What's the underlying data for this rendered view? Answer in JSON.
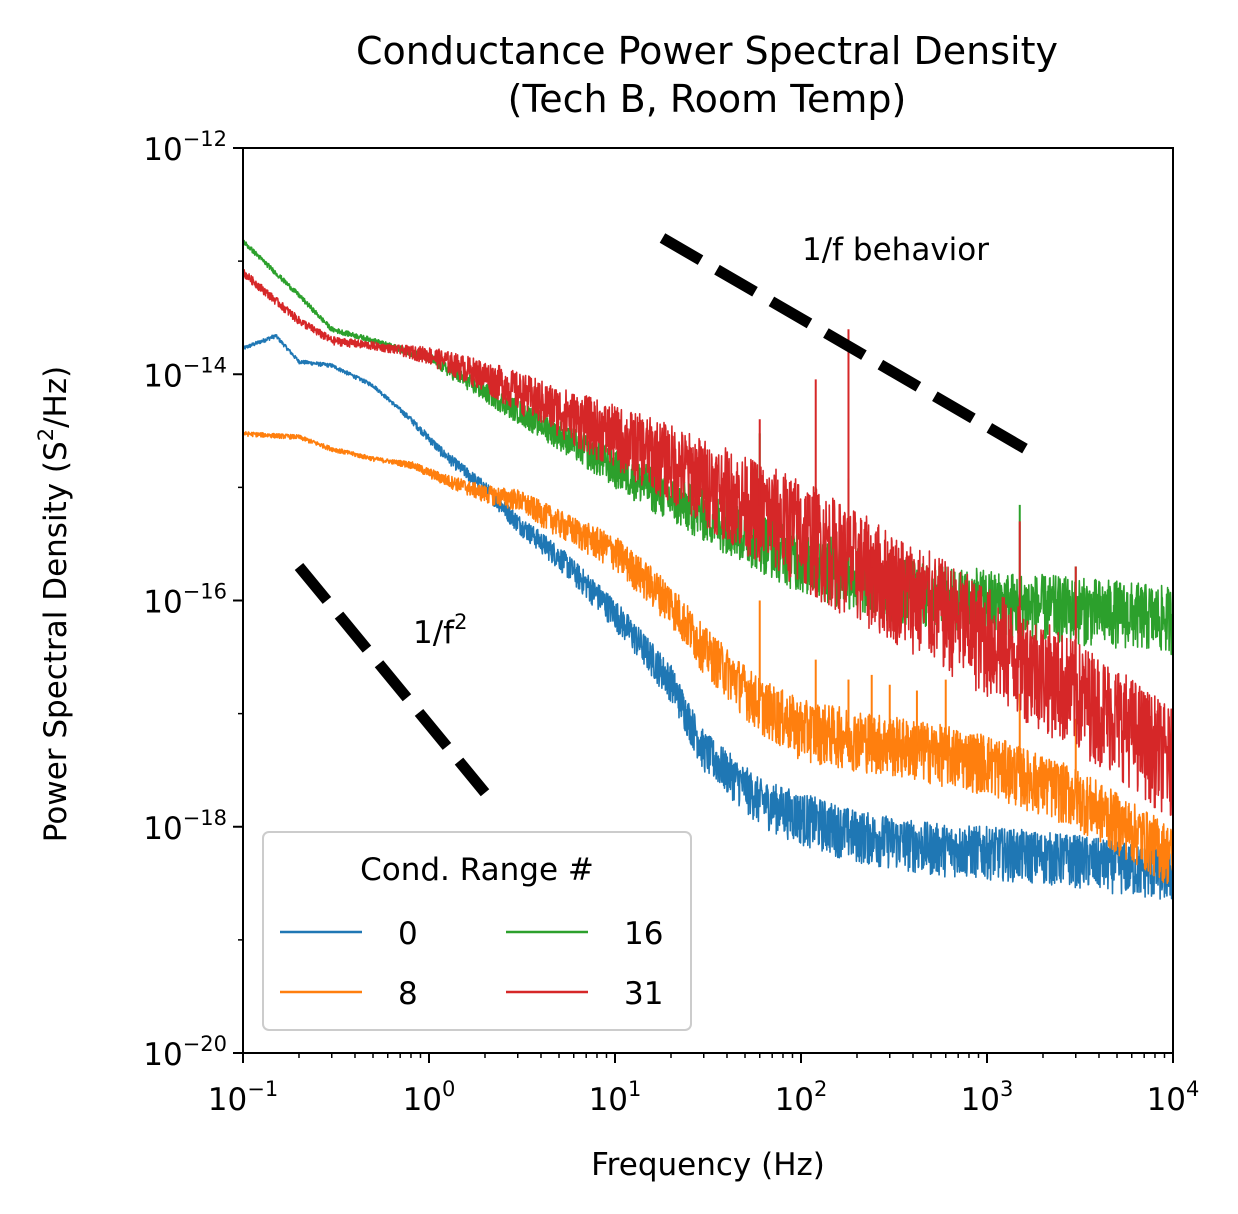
{
  "chart_data": {
    "type": "line",
    "title": "Conductance Power Spectral Density",
    "subtitle": "(Tech B, Room Temp)",
    "xlabel": "Frequency (Hz)",
    "ylabel_main": "Power Spectral Density (S",
    "ylabel_sup": "2",
    "ylabel_tail": "/Hz)",
    "xscale": "log",
    "yscale": "log",
    "xlim": [
      0.1,
      10000
    ],
    "ylim": [
      1e-20,
      1e-12
    ],
    "x_ticks": [
      {
        "base": "10",
        "exp": "−1",
        "value": 0.1
      },
      {
        "base": "10",
        "exp": "0",
        "value": 1
      },
      {
        "base": "10",
        "exp": "1",
        "value": 10
      },
      {
        "base": "10",
        "exp": "2",
        "value": 100
      },
      {
        "base": "10",
        "exp": "3",
        "value": 1000
      },
      {
        "base": "10",
        "exp": "4",
        "value": 10000
      }
    ],
    "y_ticks": [
      {
        "base": "10",
        "exp": "−20",
        "value": 1e-20
      },
      {
        "base": "10",
        "exp": "−18",
        "value": 1e-18
      },
      {
        "base": "10",
        "exp": "−16",
        "value": 1e-16
      },
      {
        "base": "10",
        "exp": "−14",
        "value": 1e-14
      },
      {
        "base": "10",
        "exp": "−12",
        "value": 1e-12
      }
    ],
    "legend": {
      "title": "Cond. Range #",
      "placement": "lower-left",
      "columns": 2
    },
    "series": [
      {
        "name": "0",
        "color": "#1f77b4",
        "x": [
          0.1,
          0.15,
          0.2,
          0.3,
          0.5,
          0.8,
          1.2,
          2,
          3,
          5,
          10,
          20,
          30,
          60,
          100,
          200,
          500,
          1000,
          3000,
          10000
        ],
        "y": [
          1.7e-14,
          2.2e-14,
          1.3e-14,
          1.2e-14,
          8e-15,
          4e-15,
          2e-15,
          1e-15,
          5e-16,
          2.5e-16,
          8e-17,
          2e-17,
          5e-18,
          1.8e-18,
          1.3e-18,
          9e-19,
          7e-19,
          6.5e-19,
          5.5e-19,
          4e-19
        ],
        "noise_hi": 1.5,
        "noise_lo": 0.55
      },
      {
        "name": "8",
        "color": "#ff7f0e",
        "x": [
          0.1,
          0.2,
          0.3,
          0.5,
          0.8,
          1.2,
          2,
          3,
          5,
          10,
          20,
          30,
          60,
          100,
          200,
          500,
          1000,
          3000,
          10000
        ],
        "y": [
          3e-15,
          2.8e-15,
          2.2e-15,
          1.8e-15,
          1.6e-15,
          1.2e-15,
          9e-16,
          8e-16,
          5e-16,
          2.8e-16,
          1e-16,
          4e-17,
          1.3e-17,
          8e-18,
          6.5e-18,
          5e-18,
          4e-18,
          2e-18,
          6e-19
        ],
        "noise_hi": 1.6,
        "noise_lo": 0.5,
        "spikes": [
          [
            60,
            1e-16
          ],
          [
            120,
            3e-17
          ],
          [
            180,
            2e-17
          ],
          [
            240,
            2.2e-17
          ],
          [
            300,
            1.8e-17
          ],
          [
            420,
            1.6e-17
          ],
          [
            600,
            2e-17
          ],
          [
            1500,
            1.5e-17
          ],
          [
            3000,
            9e-18
          ]
        ]
      },
      {
        "name": "16",
        "color": "#2ca02c",
        "x": [
          0.1,
          0.2,
          0.3,
          0.5,
          1,
          2,
          5,
          10,
          20,
          50,
          100,
          200,
          500,
          1000,
          2000,
          5000,
          10000
        ],
        "y": [
          1.5e-13,
          5e-14,
          2.5e-14,
          2e-14,
          1.4e-14,
          7e-15,
          3e-15,
          1.5e-15,
          8e-16,
          4e-16,
          2.4e-16,
          1.6e-16,
          1.1e-16,
          1e-16,
          9e-17,
          8e-17,
          7e-17
        ],
        "noise_hi": 1.8,
        "noise_lo": 0.5,
        "spikes": [
          [
            60,
            3e-15
          ],
          [
            120,
            1e-15
          ],
          [
            180,
            1.2e-15
          ],
          [
            1500,
            7e-16
          ],
          [
            3000,
            2e-16
          ]
        ]
      },
      {
        "name": "31",
        "color": "#d62728",
        "x": [
          0.1,
          0.2,
          0.3,
          0.5,
          1,
          2,
          5,
          10,
          20,
          50,
          100,
          200,
          500,
          1000,
          2000,
          5000,
          10000
        ],
        "y": [
          8e-14,
          3e-14,
          2e-14,
          1.8e-14,
          1.5e-14,
          1e-14,
          5e-15,
          3e-15,
          1.8e-15,
          8e-16,
          4.5e-16,
          2.3e-16,
          1e-16,
          5e-17,
          2.5e-17,
          1e-17,
          4e-18
        ],
        "noise_hi": 2.5,
        "noise_lo": 0.3,
        "spikes": [
          [
            60,
            4e-15
          ],
          [
            120,
            9e-15
          ],
          [
            180,
            2.5e-14
          ],
          [
            240,
            3e-16
          ],
          [
            1500,
            5e-16
          ],
          [
            3000,
            2e-16
          ]
        ]
      }
    ],
    "guide_lines": [
      {
        "name": "1/f",
        "label": "1/f behavior",
        "x": [
          18,
          1600
        ],
        "y": [
          1.6e-13,
          2.2e-15
        ],
        "color": "#000000",
        "style": "dashed"
      },
      {
        "name": "1/f2",
        "label_main": "1/f",
        "label_sup": "2",
        "x": [
          0.2,
          2
        ],
        "y": [
          2e-16,
          2e-18
        ],
        "color": "#000000",
        "style": "dashed"
      }
    ],
    "grid": false
  }
}
